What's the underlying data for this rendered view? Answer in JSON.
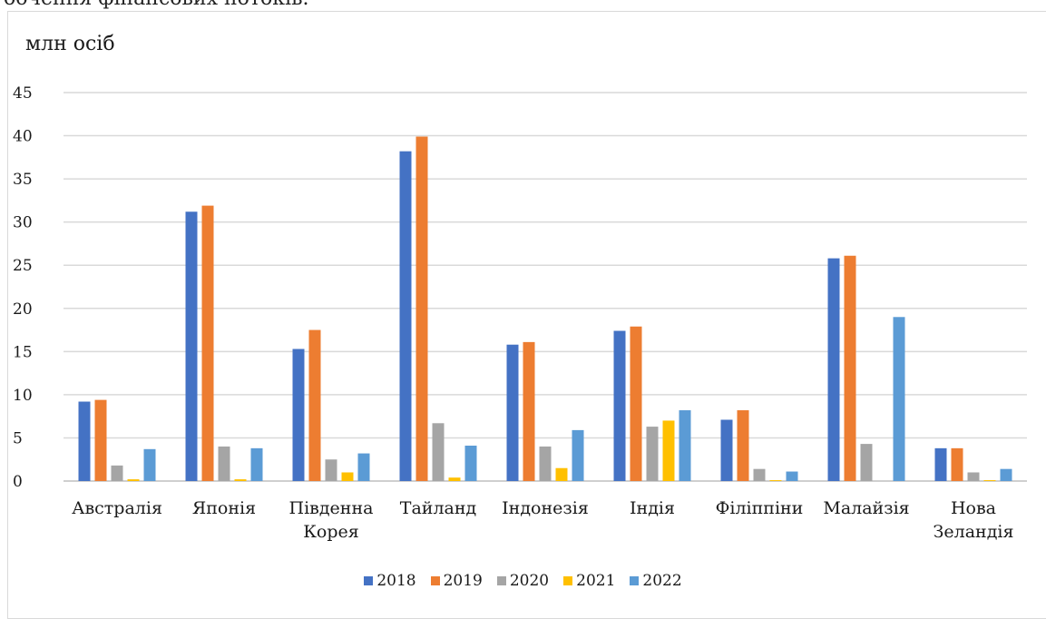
{
  "doc_top_text": "обчення фінансових потоків.",
  "chart_data": {
    "type": "bar",
    "title": "",
    "unit_label": "млн осіб",
    "ylabel": "млн осіб",
    "xlabel": "",
    "ylim": [
      0,
      45
    ],
    "yticks": [
      0,
      5,
      10,
      15,
      20,
      25,
      30,
      35,
      40,
      45
    ],
    "grid": true,
    "legend_position": "bottom",
    "categories": [
      "Австралія",
      "Японія",
      "Південна Корея",
      "Тайланд",
      "Індонезія",
      "Індія",
      "Філіппіни",
      "Малайзія",
      "Нова Зеландія"
    ],
    "category_lines": [
      [
        "Австралія"
      ],
      [
        "Японія"
      ],
      [
        "Південна",
        "Корея"
      ],
      [
        "Тайланд"
      ],
      [
        "Індонезія"
      ],
      [
        "Індія"
      ],
      [
        "Філіппіни"
      ],
      [
        "Малайзія"
      ],
      [
        "Нова",
        "Зеландія"
      ]
    ],
    "series": [
      {
        "name": "2018",
        "color": "#4472c4",
        "values": [
          9.2,
          31.2,
          15.3,
          38.2,
          15.8,
          17.4,
          7.1,
          25.8,
          3.8
        ]
      },
      {
        "name": "2019",
        "color": "#ed7d31",
        "values": [
          9.4,
          31.9,
          17.5,
          39.9,
          16.1,
          17.9,
          8.2,
          26.1,
          3.8
        ]
      },
      {
        "name": "2020",
        "color": "#a5a5a5",
        "values": [
          1.8,
          4.0,
          2.5,
          6.7,
          4.0,
          6.3,
          1.4,
          4.3,
          1.0
        ]
      },
      {
        "name": "2021",
        "color": "#ffc000",
        "values": [
          0.2,
          0.2,
          1.0,
          0.4,
          1.5,
          7.0,
          0.1,
          0.0,
          0.1
        ]
      },
      {
        "name": "2022",
        "color": "#5b9bd5",
        "values": [
          3.7,
          3.8,
          3.2,
          4.1,
          5.9,
          8.2,
          1.1,
          19.0,
          1.4
        ]
      }
    ]
  }
}
